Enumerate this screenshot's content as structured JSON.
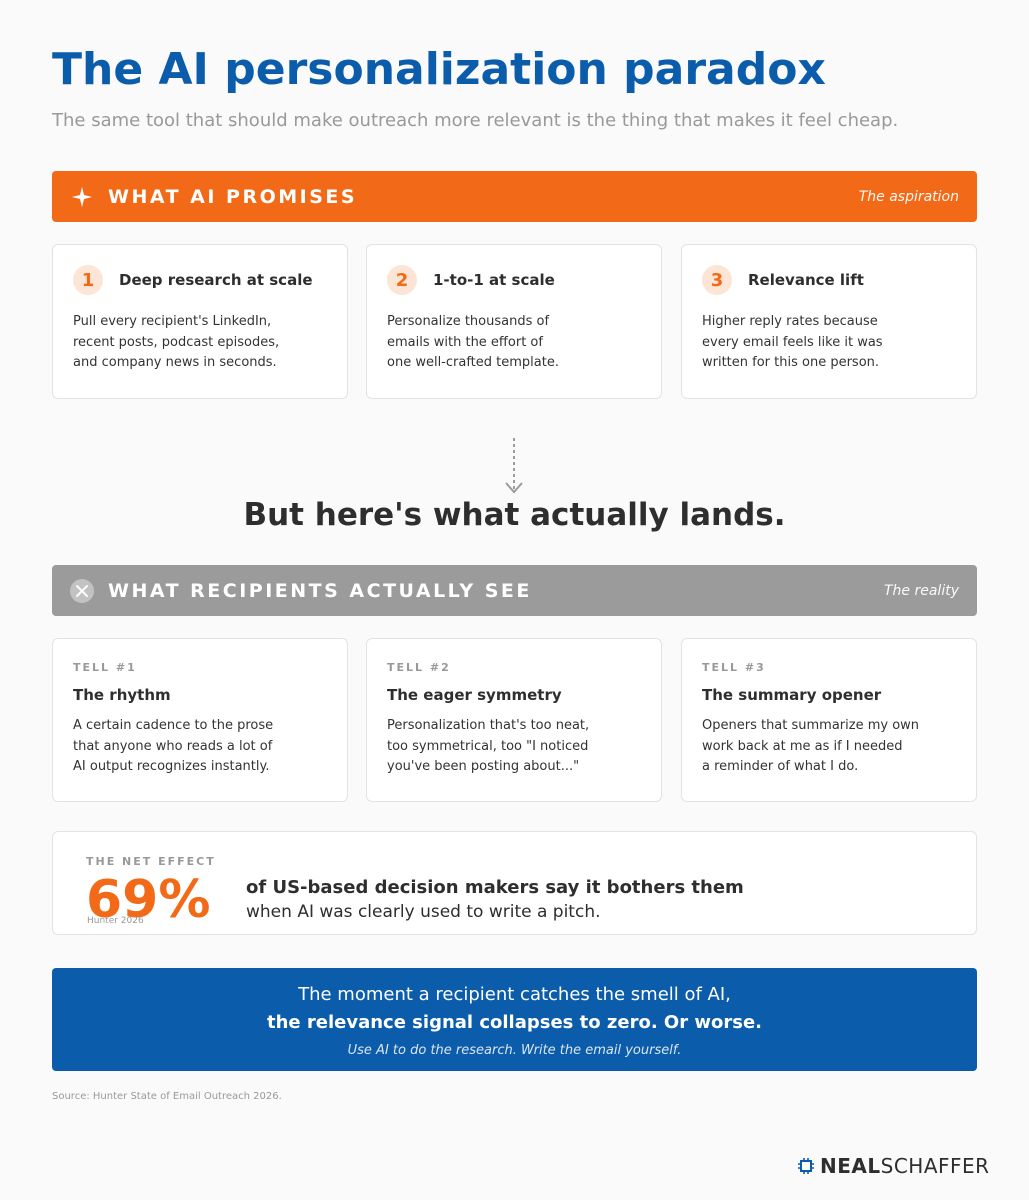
{
  "header": {
    "title": "The AI personalization paradox",
    "subtitle": "The same tool that should make outreach more relevant is the thing that makes it feel cheap."
  },
  "promises": {
    "icon": "sparkle-icon",
    "label": "WHAT AI PROMISES",
    "note": "The aspiration",
    "items": [
      {
        "number": "1",
        "title": "Deep research at scale",
        "body": "Pull every recipient's LinkedIn,\nrecent posts, podcast episodes,\nand company news in seconds."
      },
      {
        "number": "2",
        "title": "1-to-1 at scale",
        "body": "Personalize thousands of\nemails with the effort of\none well-crafted template."
      },
      {
        "number": "3",
        "title": "Relevance lift",
        "body": "Higher reply rates because\nevery email feels like it was\nwritten for this one person."
      }
    ]
  },
  "pivot": "But here's what actually lands.",
  "reality": {
    "icon": "x-circle-icon",
    "label": "WHAT RECIPIENTS ACTUALLY SEE",
    "note": "The reality",
    "items": [
      {
        "tag": "TELL #1",
        "title": "The rhythm",
        "body": "A certain cadence to the prose\nthat anyone who reads a lot of\nAI output recognizes instantly."
      },
      {
        "tag": "TELL #2",
        "title": "The eager symmetry",
        "body": "Personalization that's too neat,\ntoo symmetrical, too \"I noticed\nyou've been posting about...\""
      },
      {
        "tag": "TELL #3",
        "title": "The summary opener",
        "body": "Openers that summarize my own\nwork back at me as if I needed\na reminder of what I do."
      }
    ]
  },
  "net_effect": {
    "tag": "THE NET EFFECT",
    "percent": "69%",
    "source": "Hunter 2026",
    "line1": "of US-based decision makers say it bothers them",
    "line2": "when AI was clearly used to write a pitch."
  },
  "closing": {
    "line1": "The moment a recipient catches the smell of AI,",
    "line2": "the relevance signal collapses to zero. Or worse.",
    "line3": "Use AI to do the research. Write the email yourself."
  },
  "footer": {
    "source": "Source: Hunter State of Email Outreach 2026.",
    "brand_first": "NEAL",
    "brand_second": "SCHAFFER"
  },
  "colors": {
    "accent_orange": "#f26a17",
    "brand_blue": "#0b5cab",
    "reality_gray": "#9b9b9b"
  }
}
